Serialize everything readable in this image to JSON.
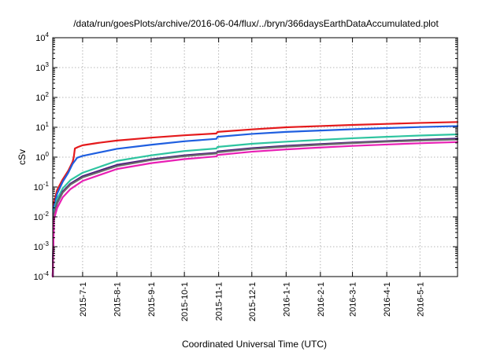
{
  "chart_data": {
    "type": "line",
    "title": "/data/run/goesPlots/archive/2016-06-04/flux/../bryn/366daysEarthDataAccumulated.plot",
    "xlabel": "Coordinated Universal Time (UTC)",
    "ylabel": "cSv",
    "x_scale": "time",
    "y_scale": "log",
    "xlim": [
      "2015-06-04",
      "2016-06-04"
    ],
    "ylim": [
      0.0001,
      10000
    ],
    "grid": true,
    "x_ticks": [
      "2015-7-1",
      "2015-8-1",
      "2015-9-1",
      "2015-10-1",
      "2015-11-1",
      "2015-12-1",
      "2016-1-1",
      "2016-2-1",
      "2016-3-1",
      "2016-4-1",
      "2016-5-1"
    ],
    "y_ticks": [
      {
        "value": 0.0001,
        "base": "10",
        "exp": "-4"
      },
      {
        "value": 0.001,
        "base": "10",
        "exp": "-3"
      },
      {
        "value": 0.01,
        "base": "10",
        "exp": "-2"
      },
      {
        "value": 0.1,
        "base": "10",
        "exp": "-1"
      },
      {
        "value": 1,
        "base": "10",
        "exp": "0"
      },
      {
        "value": 10,
        "base": "10",
        "exp": "1"
      },
      {
        "value": 100,
        "base": "10",
        "exp": "2"
      },
      {
        "value": 1000,
        "base": "10",
        "exp": "3"
      },
      {
        "value": 10000,
        "base": "10",
        "exp": "4"
      }
    ],
    "series": [
      {
        "color": "#e41a1c",
        "points": [
          [
            "2015-06-04",
            0.0001
          ],
          [
            "2015-06-05",
            0.03
          ],
          [
            "2015-06-08",
            0.08
          ],
          [
            "2015-06-13",
            0.18
          ],
          [
            "2015-06-18",
            0.35
          ],
          [
            "2015-06-22",
            0.7
          ],
          [
            "2015-06-23",
            1.0
          ],
          [
            "2015-06-24",
            1.95
          ],
          [
            "2015-06-27",
            2.2
          ],
          [
            "2015-07-01",
            2.5
          ],
          [
            "2015-07-15",
            3.0
          ],
          [
            "2015-08-01",
            3.6
          ],
          [
            "2015-09-01",
            4.5
          ],
          [
            "2015-10-01",
            5.4
          ],
          [
            "2015-10-30",
            6.2
          ],
          [
            "2015-10-31",
            7.0
          ],
          [
            "2015-12-01",
            8.5
          ],
          [
            "2016-01-01",
            10.0
          ],
          [
            "2016-02-01",
            11.0
          ],
          [
            "2016-03-01",
            12.0
          ],
          [
            "2016-04-01",
            13.0
          ],
          [
            "2016-05-01",
            14.0
          ],
          [
            "2016-06-04",
            15.0
          ]
        ]
      },
      {
        "color": "#1f5fe0",
        "points": [
          [
            "2015-06-04",
            0.0001
          ],
          [
            "2015-06-05",
            0.02
          ],
          [
            "2015-06-08",
            0.06
          ],
          [
            "2015-06-13",
            0.15
          ],
          [
            "2015-06-18",
            0.3
          ],
          [
            "2015-06-22",
            0.6
          ],
          [
            "2015-06-24",
            0.75
          ],
          [
            "2015-06-26",
            0.95
          ],
          [
            "2015-07-01",
            1.1
          ],
          [
            "2015-08-01",
            1.9
          ],
          [
            "2015-09-01",
            2.6
          ],
          [
            "2015-10-01",
            3.4
          ],
          [
            "2015-10-30",
            4.1
          ],
          [
            "2015-10-31",
            4.8
          ],
          [
            "2015-12-01",
            6.0
          ],
          [
            "2016-01-01",
            7.0
          ],
          [
            "2016-02-01",
            7.8
          ],
          [
            "2016-03-01",
            8.6
          ],
          [
            "2016-04-01",
            9.4
          ],
          [
            "2016-05-01",
            10.2
          ],
          [
            "2016-06-04",
            11.0
          ]
        ]
      },
      {
        "color": "#2ec4a0",
        "points": [
          [
            "2015-06-04",
            0.0001
          ],
          [
            "2015-06-05",
            0.015
          ],
          [
            "2015-06-08",
            0.04
          ],
          [
            "2015-06-13",
            0.09
          ],
          [
            "2015-06-20",
            0.17
          ],
          [
            "2015-07-01",
            0.3
          ],
          [
            "2015-08-01",
            0.75
          ],
          [
            "2015-09-01",
            1.15
          ],
          [
            "2015-10-01",
            1.6
          ],
          [
            "2015-10-30",
            1.95
          ],
          [
            "2015-10-31",
            2.2
          ],
          [
            "2015-12-01",
            2.8
          ],
          [
            "2016-01-01",
            3.3
          ],
          [
            "2016-02-01",
            3.8
          ],
          [
            "2016-03-01",
            4.3
          ],
          [
            "2016-04-01",
            4.8
          ],
          [
            "2016-05-01",
            5.3
          ],
          [
            "2016-06-04",
            5.8
          ]
        ]
      },
      {
        "color": "#4a1480",
        "points": [
          [
            "2015-06-04",
            0.0001
          ],
          [
            "2015-06-05",
            0.012
          ],
          [
            "2015-06-08",
            0.03
          ],
          [
            "2015-06-13",
            0.07
          ],
          [
            "2015-06-20",
            0.13
          ],
          [
            "2015-07-01",
            0.23
          ],
          [
            "2015-08-01",
            0.55
          ],
          [
            "2015-09-01",
            0.85
          ],
          [
            "2015-10-01",
            1.15
          ],
          [
            "2015-10-30",
            1.4
          ],
          [
            "2015-10-31",
            1.55
          ],
          [
            "2015-12-01",
            2.0
          ],
          [
            "2016-01-01",
            2.4
          ],
          [
            "2016-02-01",
            2.75
          ],
          [
            "2016-03-01",
            3.1
          ],
          [
            "2016-04-01",
            3.45
          ],
          [
            "2016-05-01",
            3.8
          ],
          [
            "2016-06-04",
            4.2
          ]
        ]
      },
      {
        "color": "#6a6a6a",
        "points": [
          [
            "2015-06-04",
            0.0001
          ],
          [
            "2015-06-05",
            0.011
          ],
          [
            "2015-06-08",
            0.028
          ],
          [
            "2015-06-13",
            0.065
          ],
          [
            "2015-06-20",
            0.12
          ],
          [
            "2015-07-01",
            0.21
          ],
          [
            "2015-08-01",
            0.5
          ],
          [
            "2015-09-01",
            0.8
          ],
          [
            "2015-10-01",
            1.08
          ],
          [
            "2015-10-30",
            1.32
          ],
          [
            "2015-10-31",
            1.45
          ],
          [
            "2015-12-01",
            1.88
          ],
          [
            "2016-01-01",
            2.25
          ],
          [
            "2016-02-01",
            2.6
          ],
          [
            "2016-03-01",
            2.95
          ],
          [
            "2016-04-01",
            3.3
          ],
          [
            "2016-05-01",
            3.6
          ],
          [
            "2016-06-04",
            3.9
          ]
        ]
      },
      {
        "color": "#e81fb4",
        "points": [
          [
            "2015-06-04",
            0.0001
          ],
          [
            "2015-06-05",
            0.008
          ],
          [
            "2015-06-08",
            0.02
          ],
          [
            "2015-06-13",
            0.045
          ],
          [
            "2015-06-20",
            0.085
          ],
          [
            "2015-07-01",
            0.16
          ],
          [
            "2015-08-01",
            0.4
          ],
          [
            "2015-09-01",
            0.63
          ],
          [
            "2015-10-01",
            0.86
          ],
          [
            "2015-10-30",
            1.06
          ],
          [
            "2015-10-31",
            1.18
          ],
          [
            "2015-12-01",
            1.52
          ],
          [
            "2016-01-01",
            1.82
          ],
          [
            "2016-02-01",
            2.1
          ],
          [
            "2016-03-01",
            2.38
          ],
          [
            "2016-04-01",
            2.65
          ],
          [
            "2016-05-01",
            2.92
          ],
          [
            "2016-06-04",
            3.2
          ]
        ]
      }
    ]
  }
}
